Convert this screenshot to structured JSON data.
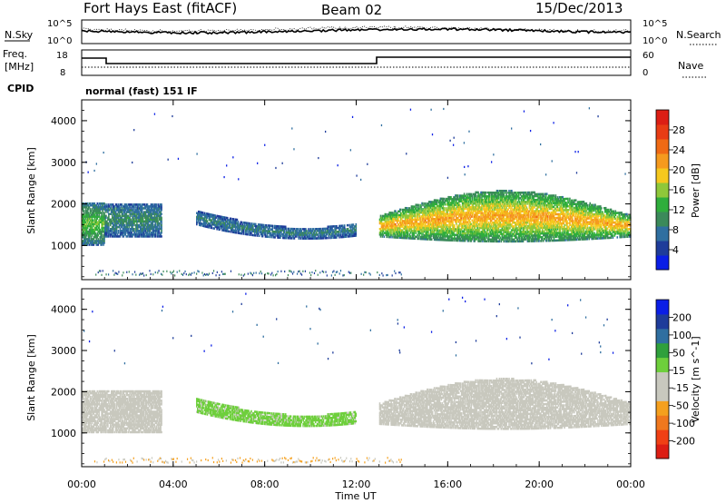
{
  "header": {
    "site": "Fort Hays East (fitACF)",
    "beam": "Beam 02",
    "date": "15/Dec/2013"
  },
  "noise_panel": {
    "left_label": "N.Sky",
    "right_label": "N.Search",
    "left_ticks": [
      "10^5",
      "10^0"
    ],
    "right_ticks": [
      "10^5",
      "10^0"
    ]
  },
  "freq_panel": {
    "left_label_line1": "Freq.",
    "left_label_line2": "[MHz]",
    "right_label": "Nave",
    "left_ticks": [
      "18",
      "8"
    ],
    "right_ticks": [
      "60",
      "0"
    ],
    "cpid_label": "CPID",
    "cpid_text": "normal (fast) 151 IF"
  },
  "colors": {
    "power_scale": [
      "#0a1ee6",
      "#1e3c9a",
      "#2f6fa0",
      "#3b8a5a",
      "#2fae3c",
      "#8fc83a",
      "#f5c81e",
      "#f59a1e",
      "#f06a14",
      "#e83c14",
      "#dc1e14"
    ],
    "velocity_scale": [
      "#dc1e14",
      "#f04014",
      "#f0781e",
      "#f5a01e",
      "#c8c8be",
      "#c8c8be",
      "#6ecf3c",
      "#2fa03c",
      "#2f6fa0",
      "#1e3c9a",
      "#0a1ee6"
    ]
  },
  "chart_data": [
    {
      "type": "heatmap",
      "name": "Power",
      "ylabel": "Slant Range [km]",
      "xlabel": "Time UT",
      "x_ticks": [
        "00:00",
        "04:00",
        "08:00",
        "12:00",
        "16:00",
        "20:00",
        "00:00"
      ],
      "y_ticks": [
        "1000",
        "2000",
        "3000",
        "4000"
      ],
      "xlim_hours": [
        0,
        24
      ],
      "ylim_km": [
        180,
        4500
      ],
      "colorbar_label": "Power [dB]",
      "colorbar_ticks": [
        "28",
        "24",
        "20",
        "16",
        "12",
        "8",
        "4"
      ],
      "colorbar_range": [
        0,
        30
      ],
      "features": [
        {
          "t0": 0.0,
          "t1": 1.0,
          "r0": 1000,
          "r1": 2000,
          "level": 10
        },
        {
          "t0": 1.0,
          "t1": 3.5,
          "r0": 1200,
          "r1": 2000,
          "level": 6
        },
        {
          "t0": 5.0,
          "t1": 12.0,
          "r0": 1100,
          "r1": 2000,
          "level": 5
        },
        {
          "t0": 13.0,
          "t1": 24.0,
          "r0": 1000,
          "r1": 2500,
          "level": 16
        }
      ]
    },
    {
      "type": "heatmap",
      "name": "Velocity",
      "ylabel": "Slant Range [km]",
      "xlabel": "Time UT",
      "x_ticks": [
        "00:00",
        "04:00",
        "08:00",
        "12:00",
        "16:00",
        "20:00",
        "00:00"
      ],
      "y_ticks": [
        "1000",
        "2000",
        "3000",
        "4000"
      ],
      "xlim_hours": [
        0,
        24
      ],
      "ylim_km": [
        180,
        4500
      ],
      "colorbar_label": "Velocity [m s^-1]",
      "colorbar_ticks": [
        "200",
        "100",
        "50",
        "15",
        "-15",
        "-50",
        "-100",
        "-200"
      ],
      "colorbar_range": [
        -250,
        250
      ],
      "features": [
        {
          "t0": 0.0,
          "t1": 3.5,
          "r0": 1000,
          "r1": 2000,
          "velocity": 0
        },
        {
          "t0": 5.0,
          "t1": 12.0,
          "r0": 1100,
          "r1": 2000,
          "velocity": 40
        },
        {
          "t0": 13.0,
          "t1": 24.0,
          "r0": 1000,
          "r1": 2500,
          "velocity": 0
        }
      ]
    }
  ]
}
